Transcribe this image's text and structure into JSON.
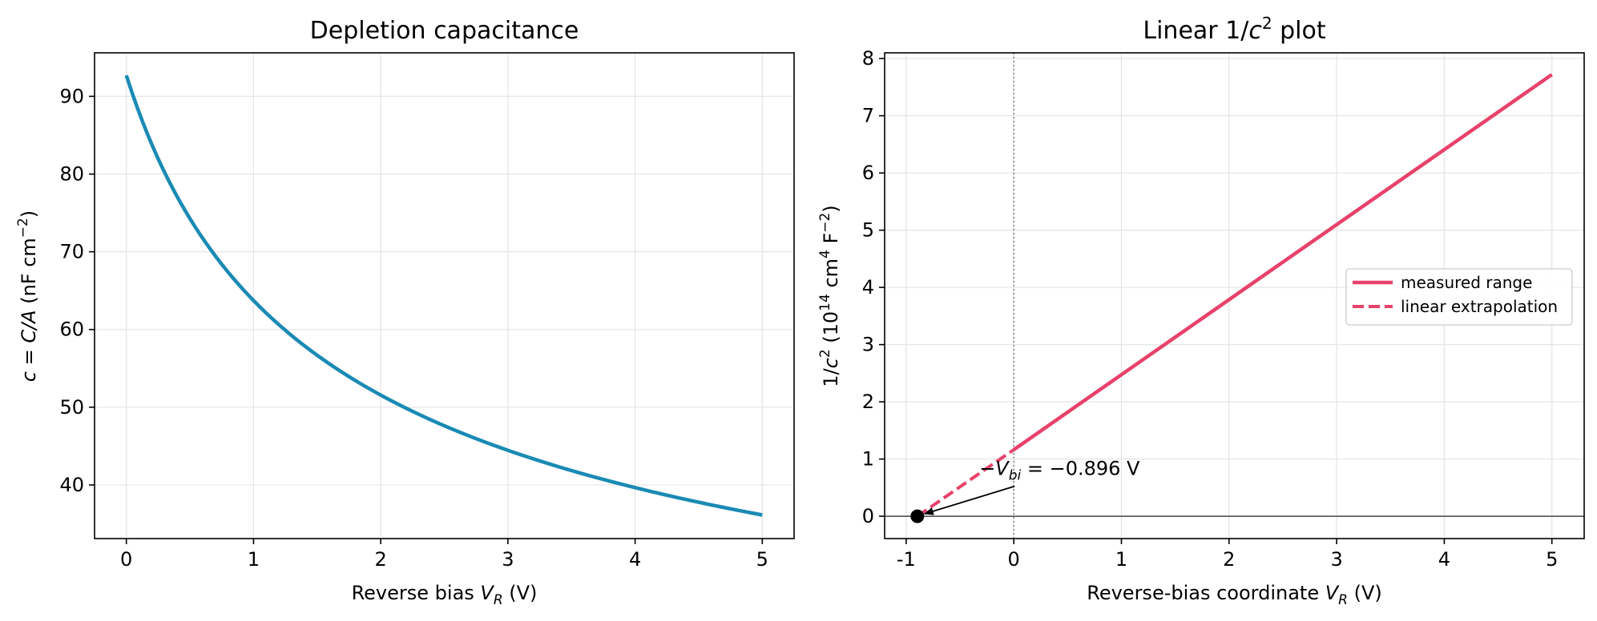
{
  "chart_data": [
    {
      "type": "line",
      "title": "Depletion capacitance",
      "xlabel": {
        "main": "Reverse bias ",
        "var": "V",
        "sub": "R",
        "unit": " (V)"
      },
      "ylabel": {
        "var": "c",
        "eq": " = ",
        "expr": "C/A",
        "unit_prefix": " (nF cm",
        "sup": "−2",
        "unit_suffix": ")"
      },
      "xlim": [
        -0.25,
        5.25
      ],
      "ylim": [
        33.1,
        95.6
      ],
      "xticks": [
        0,
        1,
        2,
        3,
        4,
        5
      ],
      "xtick_labels": [
        "0",
        "1",
        "2",
        "3",
        "4",
        "5"
      ],
      "yticks": [
        40,
        50,
        60,
        70,
        80,
        90
      ],
      "ytick_labels": [
        "40",
        "50",
        "60",
        "70",
        "80",
        "90"
      ],
      "grid": true,
      "series": [
        {
          "color": "#1a8ab4",
          "x": [
            0,
            0.25,
            0.5,
            0.75,
            1,
            1.5,
            2,
            2.5,
            3,
            3.5,
            4,
            4.5,
            5
          ],
          "values": [
            92.7,
            82.1,
            74.3,
            68.5,
            63.9,
            56.7,
            51.6,
            47.7,
            44.5,
            41.9,
            39.7,
            37.8,
            36.1
          ]
        }
      ]
    },
    {
      "type": "line",
      "title": {
        "prefix": "Linear 1/",
        "var": "c",
        "sup": "2",
        "suffix": " plot"
      },
      "xlabel": {
        "main": "Reverse-bias coordinate ",
        "var": "V",
        "sub": "R",
        "unit": " (V)"
      },
      "ylabel": {
        "prefix": "1/",
        "var": "c",
        "sup": "2",
        "mid": " (10",
        "sup2": "14",
        "mid2": " cm",
        "sup3": "4",
        "mid3": " F",
        "sup4": "−2",
        "suffix": ")"
      },
      "xlim": [
        -1.2,
        5.3
      ],
      "ylim": [
        -0.39,
        8.1
      ],
      "xticks": [
        -1,
        0,
        1,
        2,
        3,
        4,
        5
      ],
      "xtick_labels": [
        "-1",
        "0",
        "1",
        "2",
        "3",
        "4",
        "5"
      ],
      "yticks": [
        0,
        1,
        2,
        3,
        4,
        5,
        6,
        7,
        8
      ],
      "ytick_labels": [
        "0",
        "1",
        "2",
        "3",
        "4",
        "5",
        "6",
        "7",
        "8"
      ],
      "grid": true,
      "legend": "center-right",
      "series": [
        {
          "name": "measured range",
          "color": "#e8426a",
          "style": "solid",
          "x": [
            0,
            5
          ],
          "values": [
            1.163,
            7.72
          ]
        },
        {
          "name": "linear extrapolation",
          "color": "#e8426a",
          "style": "dashed",
          "x": [
            -0.896,
            0
          ],
          "values": [
            0,
            1.163
          ]
        }
      ],
      "marker": {
        "x": -0.896,
        "y": 0,
        "color": "#000000"
      },
      "vline": {
        "x": 0
      },
      "hline": {
        "y": 0
      },
      "annotation": {
        "prefix": "−",
        "var": "V",
        "sub": "bi",
        "value": " = −0.896 V",
        "text_at": [
          -0.32,
          0.72
        ],
        "arrow_to": [
          -0.896,
          0
        ]
      }
    }
  ]
}
